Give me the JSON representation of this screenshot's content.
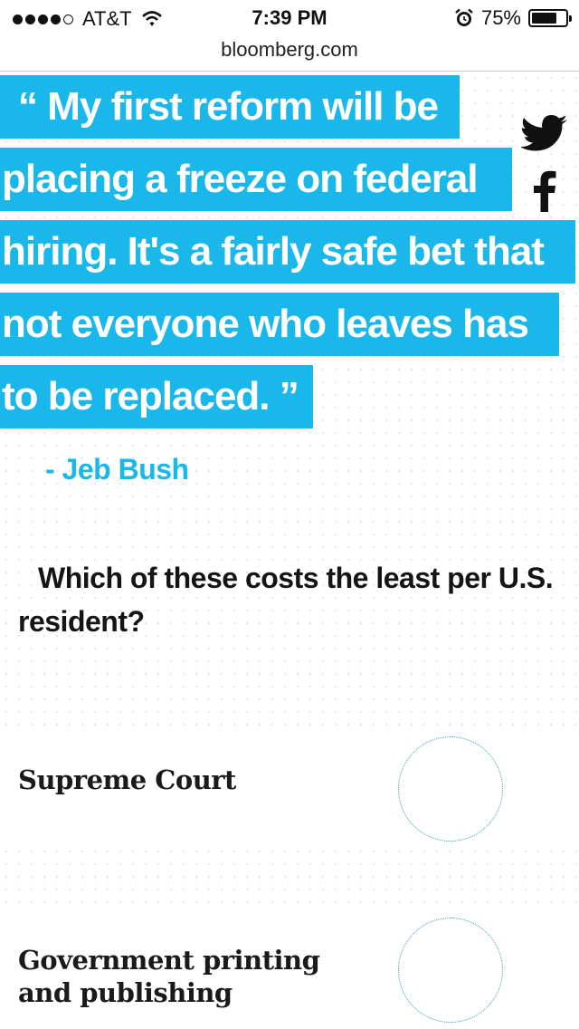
{
  "status_bar": {
    "signal_filled": 4,
    "signal_total": 5,
    "carrier": "AT&T",
    "time": "7:39 PM",
    "alarm_icon": "alarm-clock-icon",
    "battery_percent_label": "75%",
    "battery_level": 0.75
  },
  "url_bar": {
    "domain": "bloomberg.com"
  },
  "quote": {
    "lines": [
      "“ My first reform will be",
      "placing a freeze on federal",
      "hiring. It's a fairly safe bet that",
      "not everyone who leaves has",
      "to be replaced. ”"
    ],
    "author": "- Jeb Bush",
    "highlight_color": "#1ab7ea"
  },
  "share": {
    "twitter_icon": "twitter-icon",
    "facebook_icon": "facebook-icon"
  },
  "question": {
    "text": "Which of these costs the least per U.S. resident?"
  },
  "options": [
    {
      "label_lines": [
        "Supreme Court"
      ]
    },
    {
      "label_lines": [
        "Government printing",
        "and publishing"
      ]
    }
  ]
}
